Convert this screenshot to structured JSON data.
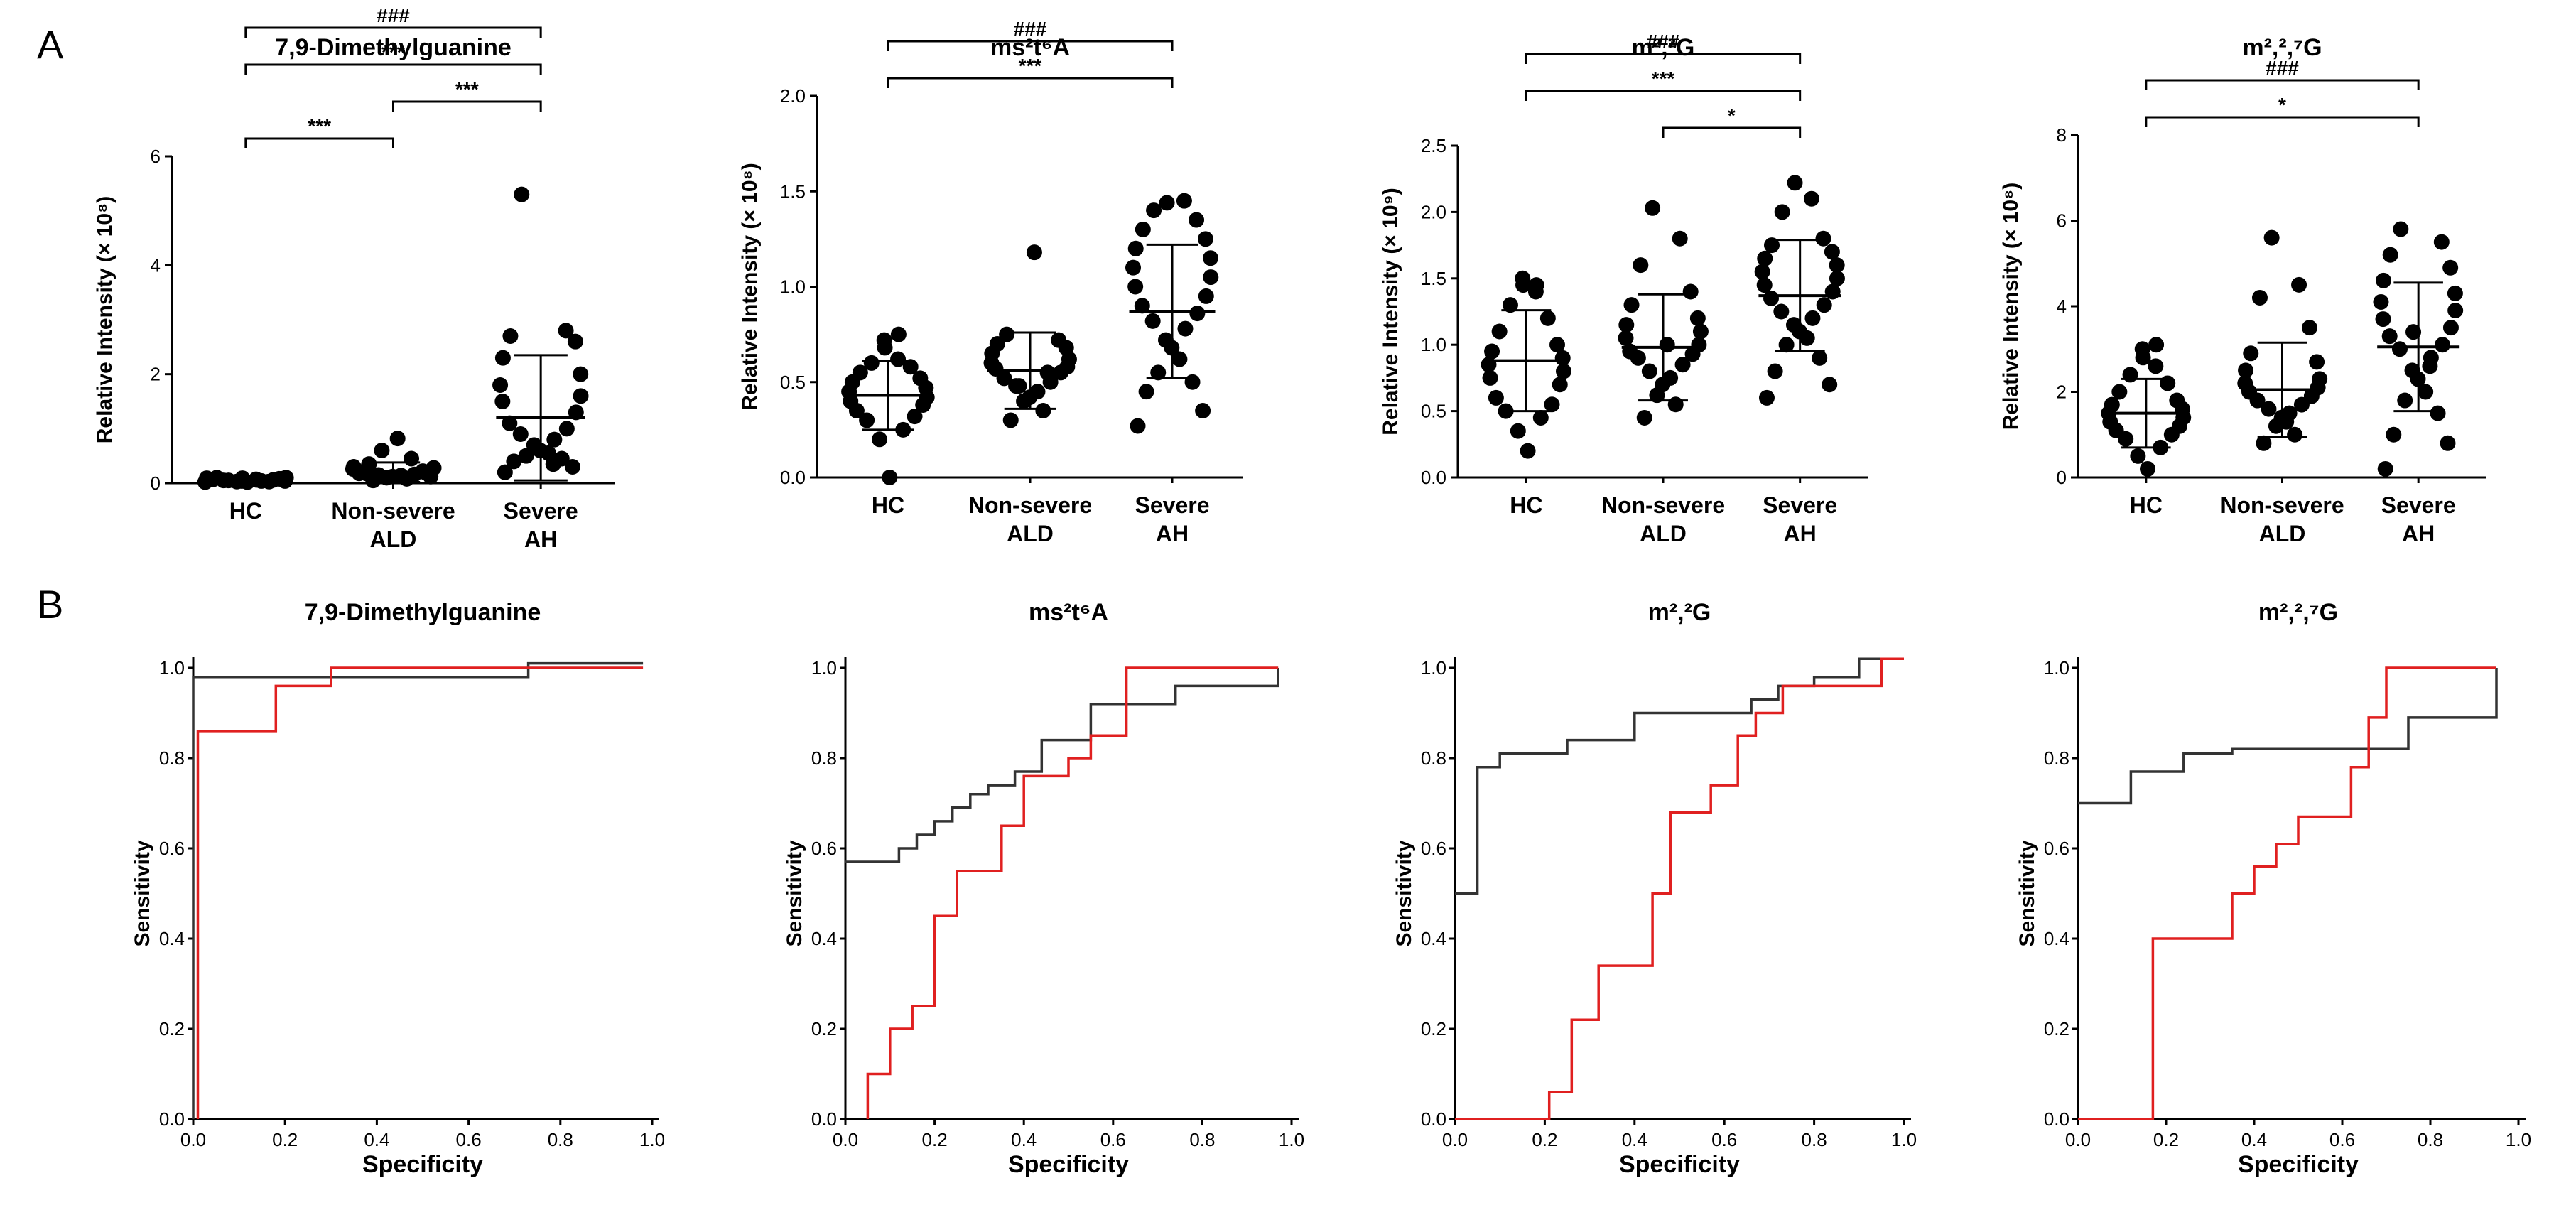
{
  "panel_labels": [
    "A",
    "B"
  ],
  "chart_data": [
    {
      "type": "scatter",
      "panel": "A",
      "title": "7,9-Dimethylguanine",
      "ylabel": "Relative Intensity (× 10⁸)",
      "ylim": [
        0,
        6
      ],
      "yticks": [
        0,
        2,
        4,
        6
      ],
      "categories": [
        "HC",
        "Non-severe|ALD",
        "Severe|AH"
      ],
      "series": [
        {
          "name": "HC",
          "values": [
            0.02,
            0.03,
            0.04,
            0.05,
            0.06,
            0.07,
            0.08,
            0.09,
            0.1,
            0.02,
            0.04,
            0.06,
            0.08,
            0.1,
            0.03,
            0.05,
            0.07,
            0.09,
            0.04,
            0.06
          ],
          "mean": 0.06,
          "sd": 0.03
        },
        {
          "name": "Non-severe ALD",
          "values": [
            0.05,
            0.08,
            0.1,
            0.12,
            0.14,
            0.15,
            0.16,
            0.18,
            0.2,
            0.22,
            0.24,
            0.26,
            0.28,
            0.3,
            0.12,
            0.18,
            0.22,
            0.35,
            0.45,
            0.6,
            0.82
          ],
          "mean": 0.2,
          "sd": 0.18
        },
        {
          "name": "Severe AH",
          "values": [
            0.2,
            0.3,
            0.4,
            0.45,
            0.5,
            0.55,
            0.6,
            0.7,
            0.8,
            0.9,
            1.0,
            1.1,
            1.3,
            1.5,
            1.6,
            1.8,
            2.0,
            2.3,
            2.6,
            2.7,
            2.8,
            5.3,
            0.35,
            0.65
          ],
          "mean": 1.2,
          "sd": 1.15
        }
      ],
      "significance": [
        {
          "from": 0,
          "to": 2,
          "label": "###",
          "level": 4
        },
        {
          "from": 0,
          "to": 2,
          "label": "***",
          "level": 3
        },
        {
          "from": 0,
          "to": 1,
          "label": "***",
          "level": 1
        },
        {
          "from": 1,
          "to": 2,
          "label": "***",
          "level": 2
        }
      ]
    },
    {
      "type": "scatter",
      "panel": "A",
      "title": "ms²t⁶A",
      "ylabel": "Relative Intensity (× 10⁸)",
      "ylim": [
        0,
        2.0
      ],
      "yticks": [
        0,
        0.5,
        1.0,
        1.5,
        2.0
      ],
      "categories": [
        "HC",
        "Non-severe|ALD",
        "Severe|AH"
      ],
      "series": [
        {
          "name": "HC",
          "values": [
            0.0,
            0.2,
            0.25,
            0.3,
            0.32,
            0.35,
            0.38,
            0.4,
            0.42,
            0.45,
            0.47,
            0.5,
            0.52,
            0.55,
            0.58,
            0.6,
            0.62,
            0.68,
            0.72,
            0.75
          ],
          "mean": 0.43,
          "sd": 0.18
        },
        {
          "name": "Non-severe ALD",
          "values": [
            0.3,
            0.35,
            0.4,
            0.42,
            0.45,
            0.48,
            0.5,
            0.52,
            0.55,
            0.57,
            0.58,
            0.6,
            0.62,
            0.65,
            0.68,
            0.7,
            0.72,
            0.75,
            0.55,
            0.48,
            1.18
          ],
          "mean": 0.56,
          "sd": 0.2
        },
        {
          "name": "Severe AH",
          "values": [
            0.27,
            0.35,
            0.45,
            0.5,
            0.55,
            0.62,
            0.68,
            0.72,
            0.78,
            0.82,
            0.86,
            0.9,
            0.95,
            1.0,
            1.05,
            1.1,
            1.15,
            1.2,
            1.25,
            1.3,
            1.35,
            1.4,
            1.45,
            1.44
          ],
          "mean": 0.87,
          "sd": 0.35
        }
      ],
      "significance": [
        {
          "from": 0,
          "to": 2,
          "label": "###",
          "level": 2
        },
        {
          "from": 0,
          "to": 2,
          "label": "***",
          "level": 1
        }
      ]
    },
    {
      "type": "scatter",
      "panel": "A",
      "title": "m²,²G",
      "ylabel": "Relative Intensity (× 10⁹)",
      "ylim": [
        0,
        2.5
      ],
      "yticks": [
        0,
        0.5,
        1.0,
        1.5,
        2.0,
        2.5
      ],
      "categories": [
        "HC",
        "Non-severe|ALD",
        "Severe|AH"
      ],
      "series": [
        {
          "name": "HC",
          "values": [
            0.2,
            0.35,
            0.45,
            0.5,
            0.55,
            0.6,
            0.7,
            0.75,
            0.8,
            0.85,
            0.9,
            0.95,
            1.0,
            1.1,
            1.2,
            1.3,
            1.4,
            1.45,
            1.5,
            1.45
          ],
          "mean": 0.88,
          "sd": 0.38
        },
        {
          "name": "Non-severe ALD",
          "values": [
            0.45,
            0.55,
            0.62,
            0.7,
            0.75,
            0.8,
            0.85,
            0.9,
            0.93,
            0.95,
            1.0,
            1.05,
            1.1,
            1.15,
            1.2,
            1.3,
            1.4,
            1.6,
            1.8,
            2.03,
            1.0
          ],
          "mean": 0.98,
          "sd": 0.4
        },
        {
          "name": "Severe AH",
          "values": [
            0.6,
            0.7,
            0.8,
            0.9,
            1.0,
            1.05,
            1.1,
            1.15,
            1.2,
            1.25,
            1.3,
            1.35,
            1.4,
            1.45,
            1.5,
            1.55,
            1.6,
            1.65,
            1.7,
            1.75,
            1.8,
            2.0,
            2.1,
            2.22
          ],
          "mean": 1.37,
          "sd": 0.42
        }
      ],
      "significance": [
        {
          "from": 0,
          "to": 2,
          "label": "###",
          "level": 3
        },
        {
          "from": 0,
          "to": 2,
          "label": "***",
          "level": 2
        },
        {
          "from": 1,
          "to": 2,
          "label": "*",
          "level": 1
        }
      ]
    },
    {
      "type": "scatter",
      "panel": "A",
      "title": "m²,²,⁷G",
      "ylabel": "Relative Intensity (× 10⁸)",
      "ylim": [
        0,
        8
      ],
      "yticks": [
        0,
        2,
        4,
        6,
        8
      ],
      "categories": [
        "HC",
        "Non-severe|ALD",
        "Severe|AH"
      ],
      "series": [
        {
          "name": "HC",
          "values": [
            0.2,
            0.5,
            0.7,
            0.9,
            1.0,
            1.1,
            1.2,
            1.3,
            1.4,
            1.5,
            1.6,
            1.7,
            1.8,
            2.0,
            2.2,
            2.4,
            2.6,
            2.8,
            3.0,
            3.1
          ],
          "mean": 1.5,
          "sd": 0.8
        },
        {
          "name": "Non-severe ALD",
          "values": [
            0.8,
            1.0,
            1.2,
            1.4,
            1.5,
            1.6,
            1.7,
            1.8,
            1.9,
            2.0,
            2.1,
            2.2,
            2.3,
            2.5,
            2.7,
            2.9,
            3.5,
            4.2,
            4.5,
            5.6,
            1.3
          ],
          "mean": 2.05,
          "sd": 1.1
        },
        {
          "name": "Severe AH",
          "values": [
            0.2,
            0.8,
            1.0,
            1.5,
            1.8,
            2.0,
            2.3,
            2.5,
            2.8,
            3.0,
            3.1,
            3.3,
            3.5,
            3.7,
            3.9,
            4.1,
            4.3,
            4.6,
            4.9,
            5.2,
            5.5,
            5.8,
            2.6,
            3.4
          ],
          "mean": 3.05,
          "sd": 1.5
        }
      ],
      "significance": [
        {
          "from": 0,
          "to": 2,
          "label": "###",
          "level": 2
        },
        {
          "from": 0,
          "to": 2,
          "label": "*",
          "level": 1
        }
      ]
    },
    {
      "type": "line",
      "panel": "B",
      "title": "7,9-Dimethylguanine",
      "xlabel": "Specificity",
      "ylabel": "Sensitivity",
      "xlim": [
        0,
        1.0
      ],
      "ylim": [
        0,
        1.0
      ],
      "xticks": [
        0.0,
        0.2,
        0.4,
        0.6,
        0.8,
        1.0
      ],
      "yticks": [
        0.0,
        0.2,
        0.4,
        0.6,
        0.8,
        1.0
      ],
      "series": [
        {
          "name": "black",
          "color": "#333333",
          "x": [
            0,
            0,
            0.73,
            0.73,
            0.98
          ],
          "y": [
            0,
            0.98,
            0.98,
            1.01,
            1.01
          ]
        },
        {
          "name": "red",
          "color": "#e02020",
          "x": [
            0.01,
            0.01,
            0.18,
            0.18,
            0.3,
            0.3,
            0.98
          ],
          "y": [
            0,
            0.86,
            0.86,
            0.96,
            0.96,
            1.0,
            1.0
          ]
        }
      ]
    },
    {
      "type": "line",
      "panel": "B",
      "title": "ms²t⁶A",
      "xlabel": "Specificity",
      "ylabel": "Sensitivity",
      "xlim": [
        0,
        1.0
      ],
      "ylim": [
        0,
        1.0
      ],
      "xticks": [
        0.0,
        0.2,
        0.4,
        0.6,
        0.8,
        1.0
      ],
      "yticks": [
        0.0,
        0.2,
        0.4,
        0.6,
        0.8,
        1.0
      ],
      "series": [
        {
          "name": "black",
          "color": "#333333",
          "x": [
            0,
            0.12,
            0.12,
            0.16,
            0.16,
            0.2,
            0.2,
            0.24,
            0.24,
            0.28,
            0.28,
            0.32,
            0.32,
            0.38,
            0.38,
            0.44,
            0.44,
            0.55,
            0.55,
            0.74,
            0.74,
            0.97,
            0.97
          ],
          "y": [
            0.57,
            0.57,
            0.6,
            0.6,
            0.63,
            0.63,
            0.66,
            0.66,
            0.69,
            0.69,
            0.72,
            0.72,
            0.74,
            0.74,
            0.77,
            0.77,
            0.84,
            0.84,
            0.92,
            0.92,
            0.96,
            0.96,
            1.0
          ]
        },
        {
          "name": "red",
          "color": "#e02020",
          "x": [
            0.05,
            0.05,
            0.1,
            0.1,
            0.15,
            0.15,
            0.2,
            0.2,
            0.25,
            0.25,
            0.35,
            0.35,
            0.4,
            0.4,
            0.5,
            0.5,
            0.55,
            0.55,
            0.63,
            0.63,
            0.72,
            0.72,
            0.97
          ],
          "y": [
            0,
            0.1,
            0.1,
            0.2,
            0.2,
            0.25,
            0.25,
            0.45,
            0.45,
            0.55,
            0.55,
            0.65,
            0.65,
            0.76,
            0.76,
            0.8,
            0.8,
            0.85,
            0.85,
            1.0,
            1.0,
            1.0,
            1.0
          ]
        }
      ]
    },
    {
      "type": "line",
      "panel": "B",
      "title": "m²,²G",
      "xlabel": "Specificity",
      "ylabel": "Sensitivity",
      "xlim": [
        0,
        1.0
      ],
      "ylim": [
        0,
        1.0
      ],
      "xticks": [
        0.0,
        0.2,
        0.4,
        0.6,
        0.8,
        1.0
      ],
      "yticks": [
        0.0,
        0.2,
        0.4,
        0.6,
        0.8,
        1.0
      ],
      "series": [
        {
          "name": "black",
          "color": "#333333",
          "x": [
            0,
            0.05,
            0.05,
            0.1,
            0.1,
            0.25,
            0.25,
            0.4,
            0.4,
            0.66,
            0.66,
            0.72,
            0.72,
            0.8,
            0.8,
            0.9,
            0.9,
            1.0
          ],
          "y": [
            0.5,
            0.5,
            0.78,
            0.78,
            0.81,
            0.81,
            0.84,
            0.84,
            0.9,
            0.9,
            0.93,
            0.93,
            0.96,
            0.96,
            0.98,
            0.98,
            1.02,
            1.02
          ]
        },
        {
          "name": "red",
          "color": "#e02020",
          "x": [
            0,
            0.21,
            0.21,
            0.26,
            0.26,
            0.32,
            0.32,
            0.44,
            0.44,
            0.48,
            0.48,
            0.57,
            0.57,
            0.63,
            0.63,
            0.67,
            0.67,
            0.73,
            0.73,
            0.95,
            0.95,
            1.0
          ],
          "y": [
            0,
            0,
            0.06,
            0.06,
            0.22,
            0.22,
            0.34,
            0.34,
            0.5,
            0.5,
            0.68,
            0.68,
            0.74,
            0.74,
            0.85,
            0.85,
            0.9,
            0.9,
            0.96,
            0.96,
            1.02,
            1.02
          ]
        }
      ]
    },
    {
      "type": "line",
      "panel": "B",
      "title": "m²,²,⁷G",
      "xlabel": "Specificity",
      "ylabel": "Sensitivity",
      "xlim": [
        0,
        1.0
      ],
      "ylim": [
        0,
        1.0
      ],
      "xticks": [
        0.0,
        0.2,
        0.4,
        0.6,
        0.8,
        1.0
      ],
      "yticks": [
        0.0,
        0.2,
        0.4,
        0.6,
        0.8,
        1.0
      ],
      "series": [
        {
          "name": "black",
          "color": "#333333",
          "x": [
            0,
            0.12,
            0.12,
            0.24,
            0.24,
            0.35,
            0.35,
            0.75,
            0.75,
            0.95,
            0.95
          ],
          "y": [
            0.7,
            0.7,
            0.77,
            0.77,
            0.81,
            0.81,
            0.82,
            0.82,
            0.89,
            0.89,
            1.0
          ]
        },
        {
          "name": "red",
          "color": "#e02020",
          "x": [
            0,
            0.17,
            0.17,
            0.35,
            0.35,
            0.4,
            0.4,
            0.45,
            0.45,
            0.5,
            0.5,
            0.62,
            0.62,
            0.66,
            0.66,
            0.7,
            0.7,
            0.76,
            0.76,
            0.95
          ],
          "y": [
            0,
            0,
            0.4,
            0.4,
            0.5,
            0.5,
            0.56,
            0.56,
            0.61,
            0.61,
            0.67,
            0.67,
            0.78,
            0.78,
            0.89,
            0.89,
            1.0,
            1.0,
            1.0,
            1.0
          ]
        }
      ]
    }
  ]
}
